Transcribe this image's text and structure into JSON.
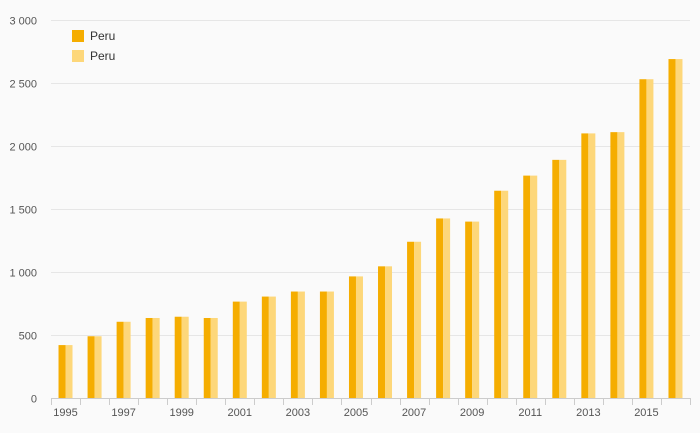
{
  "chart_data": {
    "type": "bar",
    "title": "",
    "xlabel": "",
    "ylabel": "",
    "categories": [
      "1995",
      "1996",
      "1997",
      "1998",
      "1999",
      "2000",
      "2001",
      "2002",
      "2003",
      "2004",
      "2005",
      "2006",
      "2007",
      "2008",
      "2009",
      "2010",
      "2011",
      "2012",
      "2013",
      "2014",
      "2015",
      "2016"
    ],
    "x_tick_labels": [
      "1995",
      "1997",
      "1999",
      "2001",
      "2003",
      "2005",
      "2007",
      "2009",
      "2011",
      "2013",
      "2015"
    ],
    "y_tick_labels": [
      "0",
      "500",
      "1 000",
      "1 500",
      "2 000",
      "2 500",
      "3 000"
    ],
    "y_ticks": [
      0,
      500,
      1000,
      1500,
      2000,
      2500,
      3000
    ],
    "ylim": [
      0,
      3000
    ],
    "grid": true,
    "legend_position": "top-left",
    "series": [
      {
        "name": "Peru",
        "color": "#f5ad00",
        "values": [
          420,
          490,
          605,
          635,
          645,
          635,
          765,
          805,
          845,
          845,
          965,
          1045,
          1240,
          1425,
          1400,
          1645,
          1765,
          1890,
          2100,
          2110,
          2530,
          2690
        ]
      },
      {
        "name": "Peru",
        "color": "#fdd77a",
        "values": [
          420,
          490,
          605,
          635,
          645,
          635,
          765,
          805,
          845,
          845,
          965,
          1045,
          1240,
          1425,
          1400,
          1645,
          1765,
          1890,
          2100,
          2110,
          2530,
          2690
        ]
      }
    ]
  }
}
